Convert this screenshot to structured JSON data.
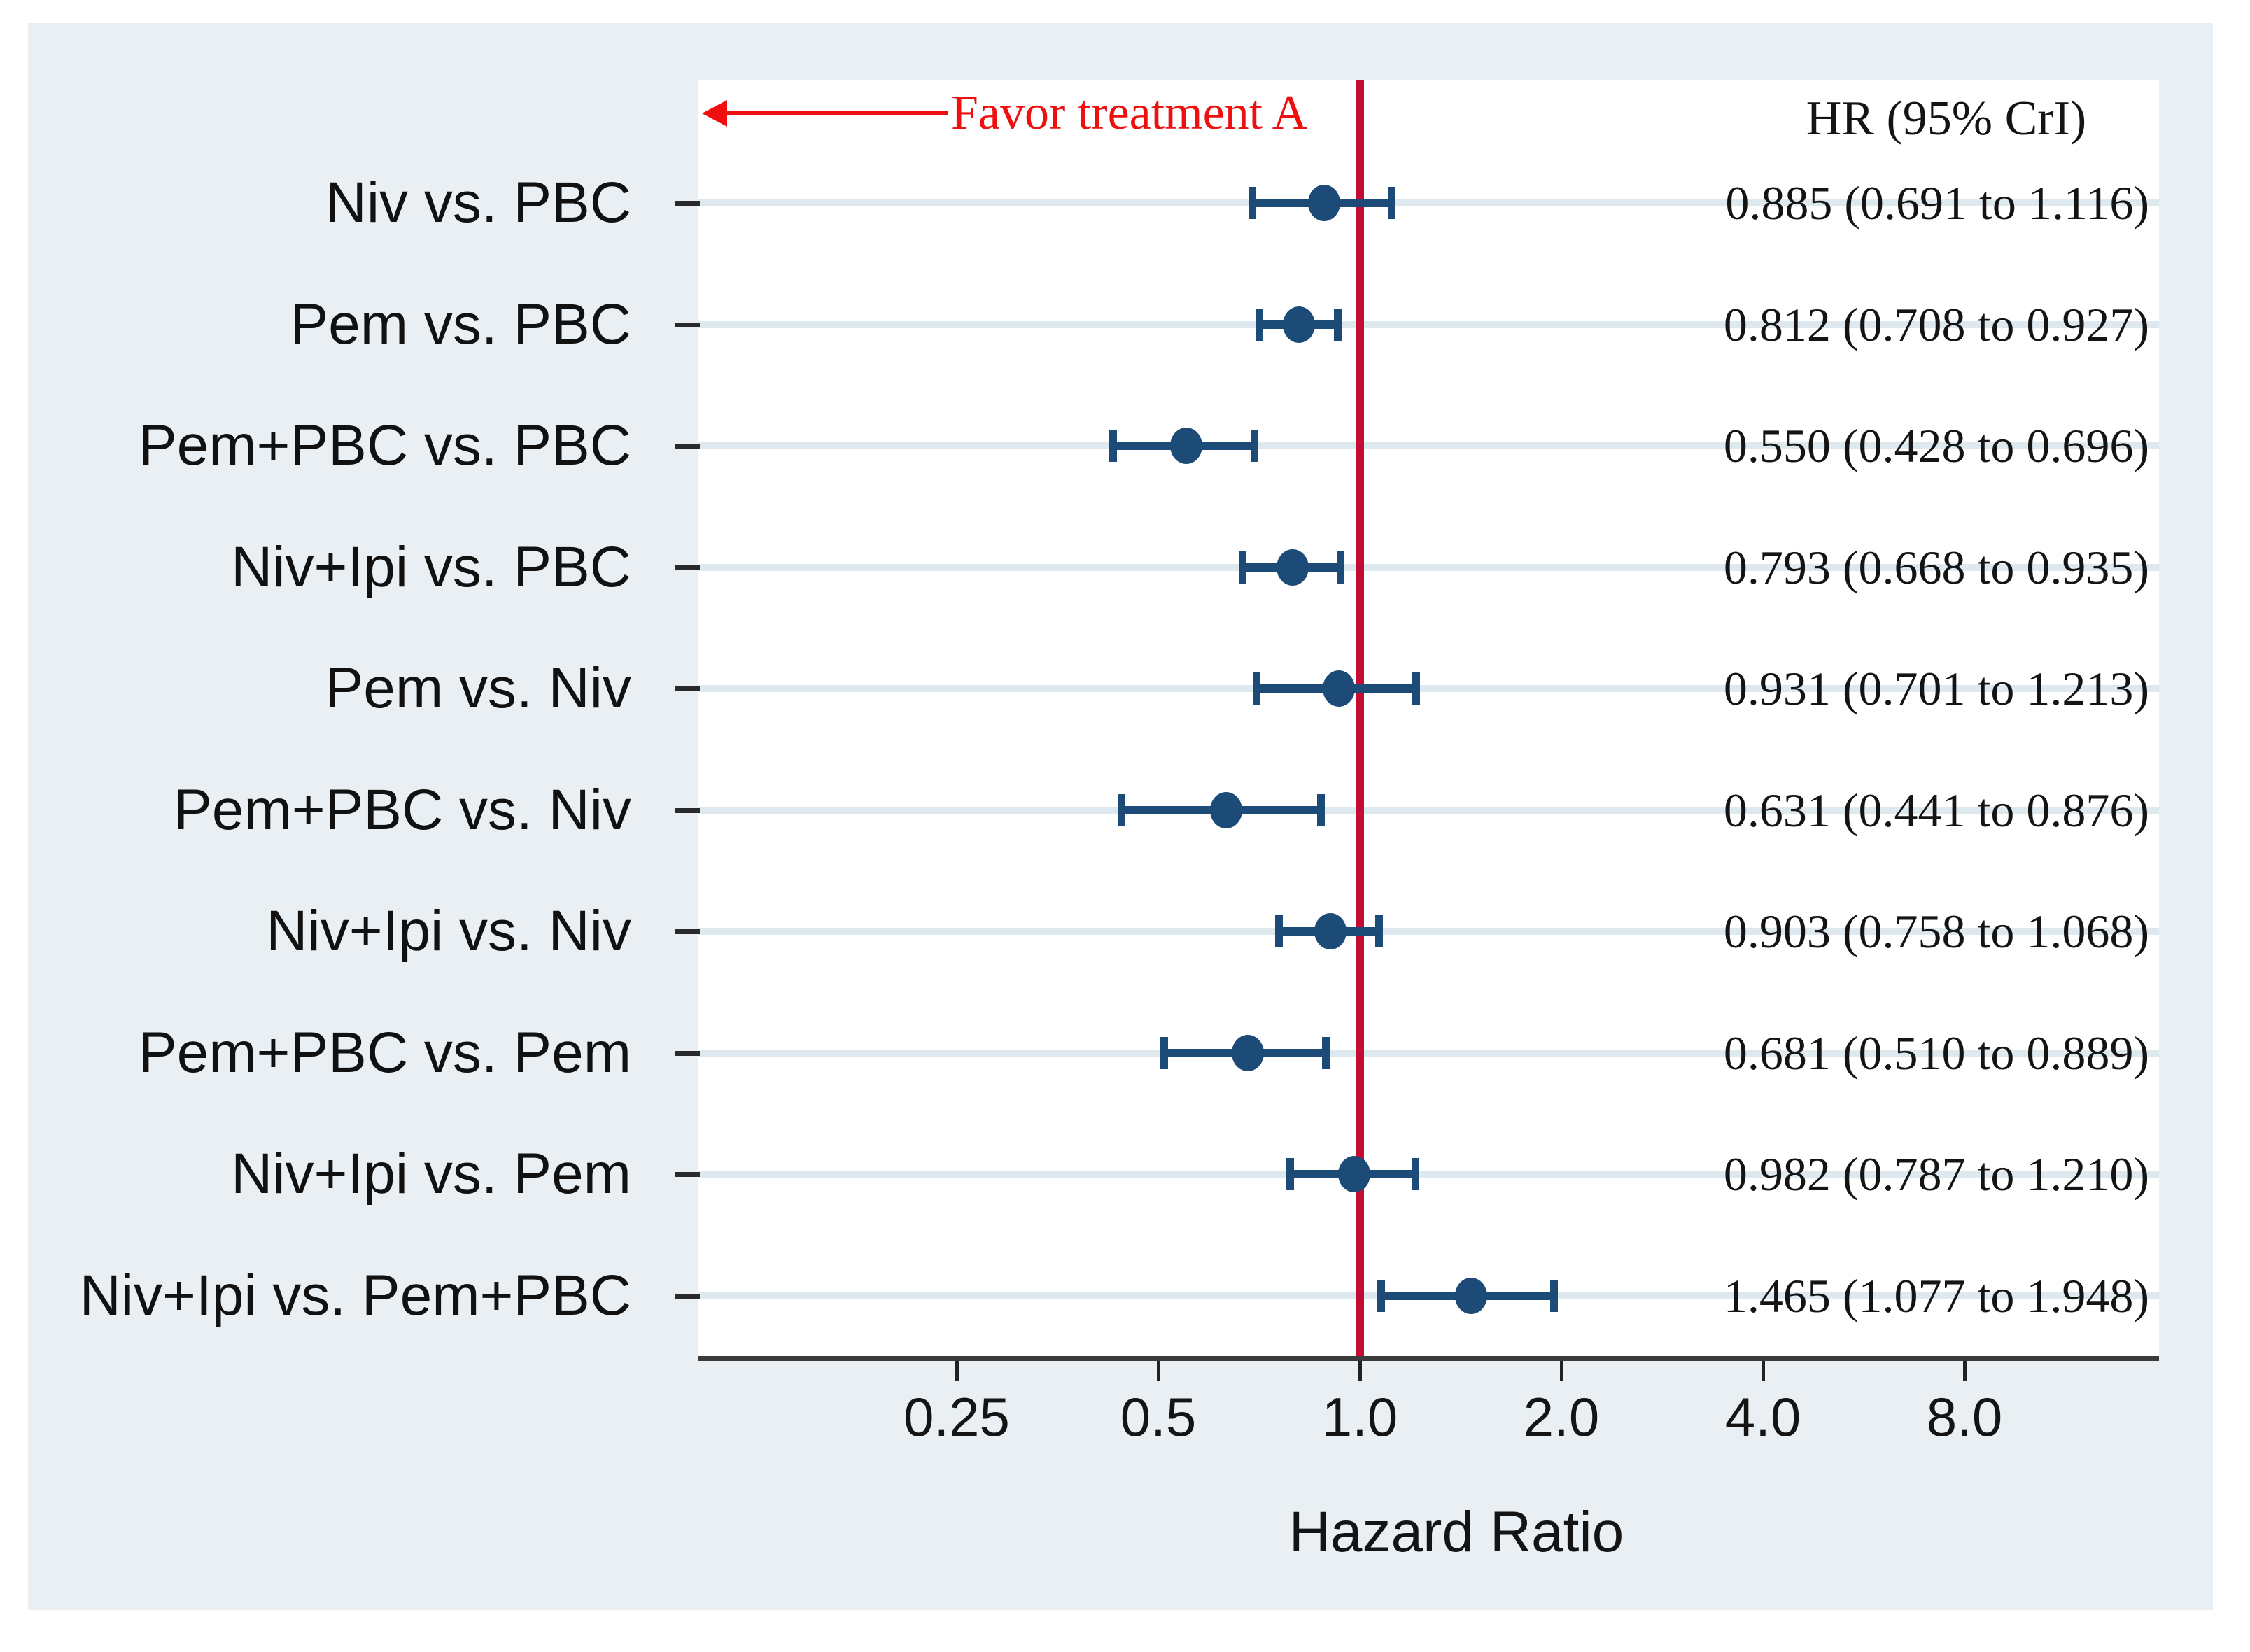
{
  "figure": {
    "favor_annotation": "Favor treatment A",
    "column_header": "HR (95% CrI)",
    "x_axis_title": "Hazard Ratio"
  },
  "chart_data": {
    "type": "forest",
    "x_scale": "log2",
    "xlabel": "Hazard Ratio",
    "x_ticks": [
      {
        "value": 0.25,
        "label": "0.25"
      },
      {
        "value": 0.5,
        "label": "0.5"
      },
      {
        "value": 1.0,
        "label": "1.0"
      },
      {
        "value": 2.0,
        "label": "2.0"
      },
      {
        "value": 4.0,
        "label": "4.0"
      },
      {
        "value": 8.0,
        "label": "8.0"
      }
    ],
    "reference_line": 1.0,
    "legend_header": "HR (95% CrI)",
    "annotation": "Favor treatment A",
    "rows": [
      {
        "label": "Niv vs. PBC",
        "hr": 0.885,
        "lo": 0.691,
        "hi": 1.116,
        "display": "0.885 (0.691 to 1.116)"
      },
      {
        "label": "Pem vs. PBC",
        "hr": 0.812,
        "lo": 0.708,
        "hi": 0.927,
        "display": "0.812 (0.708 to 0.927)"
      },
      {
        "label": "Pem+PBC vs. PBC",
        "hr": 0.55,
        "lo": 0.428,
        "hi": 0.696,
        "display": "0.550 (0.428 to 0.696)"
      },
      {
        "label": "Niv+Ipi vs. PBC",
        "hr": 0.793,
        "lo": 0.668,
        "hi": 0.935,
        "display": "0.793 (0.668 to 0.935)"
      },
      {
        "label": "Pem vs. Niv",
        "hr": 0.931,
        "lo": 0.701,
        "hi": 1.213,
        "display": "0.931 (0.701 to 1.213)"
      },
      {
        "label": "Pem+PBC vs. Niv",
        "hr": 0.631,
        "lo": 0.441,
        "hi": 0.876,
        "display": "0.631 (0.441 to 0.876)"
      },
      {
        "label": "Niv+Ipi vs. Niv",
        "hr": 0.903,
        "lo": 0.758,
        "hi": 1.068,
        "display": "0.903 (0.758 to 1.068)"
      },
      {
        "label": "Pem+PBC vs. Pem",
        "hr": 0.681,
        "lo": 0.51,
        "hi": 0.889,
        "display": "0.681 (0.510 to 0.889)"
      },
      {
        "label": "Niv+Ipi vs. Pem",
        "hr": 0.982,
        "lo": 0.787,
        "hi": 1.21,
        "display": "0.982 (0.787 to 1.210)"
      },
      {
        "label": "Niv+Ipi vs. Pem+PBC",
        "hr": 1.465,
        "lo": 1.077,
        "hi": 1.948,
        "display": "1.465 (1.077 to 1.948)"
      }
    ],
    "colors": {
      "marker": "#1d4b77",
      "ci_line": "#1d4b77",
      "reference_line": "#c30b33",
      "arrow": "#ef0f0f",
      "favor_text": "#ef0f0f",
      "gridline": "#dde9ef",
      "panel_bg": "#e9eff2",
      "plot_bg": "#ffffff",
      "axis_line": "#3b3b3b",
      "text": "#141414",
      "tick": "#222222"
    }
  }
}
